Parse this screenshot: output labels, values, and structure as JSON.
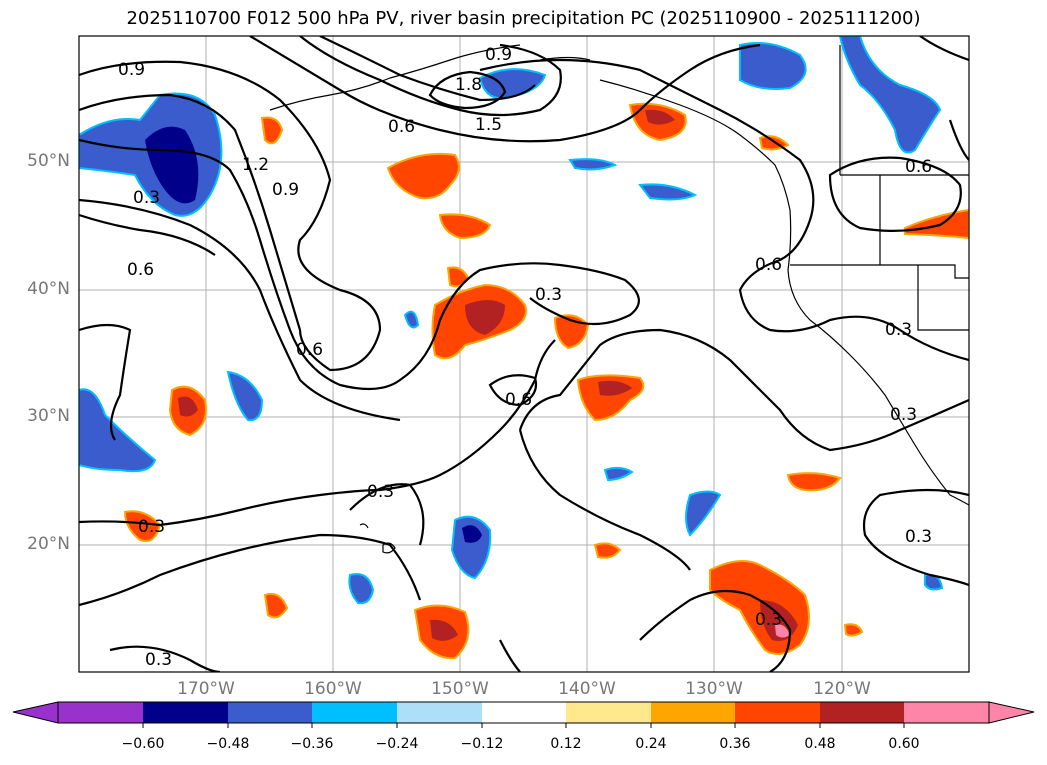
{
  "title": "2025110700 F012 500 hPa PV, river basin precipitation PC (2025110900 - 2025111200)",
  "map": {
    "lat_labels": [
      "50°N",
      "40°N",
      "30°N",
      "20°N"
    ],
    "lon_labels": [
      "170°W",
      "160°W",
      "150°W",
      "140°W",
      "130°W",
      "120°W"
    ],
    "contour_labels": [
      "0.9",
      "0.9",
      "1.8",
      "1.5",
      "0.6",
      "1.2",
      "0.9",
      "0.3",
      "0.6",
      "0.6",
      "0.3",
      "0.6",
      "0.6",
      "0.3",
      "0.3",
      "0.3",
      "0.3",
      "0.3",
      "0.3",
      "0.6",
      "0.3"
    ],
    "colors": {
      "contour": "#000000",
      "grid": "#b0b0b0",
      "coast": "#000000"
    }
  },
  "colorbar": {
    "ticks": [
      "−0.60",
      "−0.48",
      "−0.36",
      "−0.24",
      "−0.12",
      "0.12",
      "0.24",
      "0.36",
      "0.48",
      "0.60"
    ],
    "colors": [
      "#9932cc",
      "#00008b",
      "#3a5ccc",
      "#00bfff",
      "#ade0f8",
      "#ffffff",
      "#ffe98c",
      "#ffa500",
      "#ff4500",
      "#b22222",
      "#ff85a8"
    ]
  }
}
